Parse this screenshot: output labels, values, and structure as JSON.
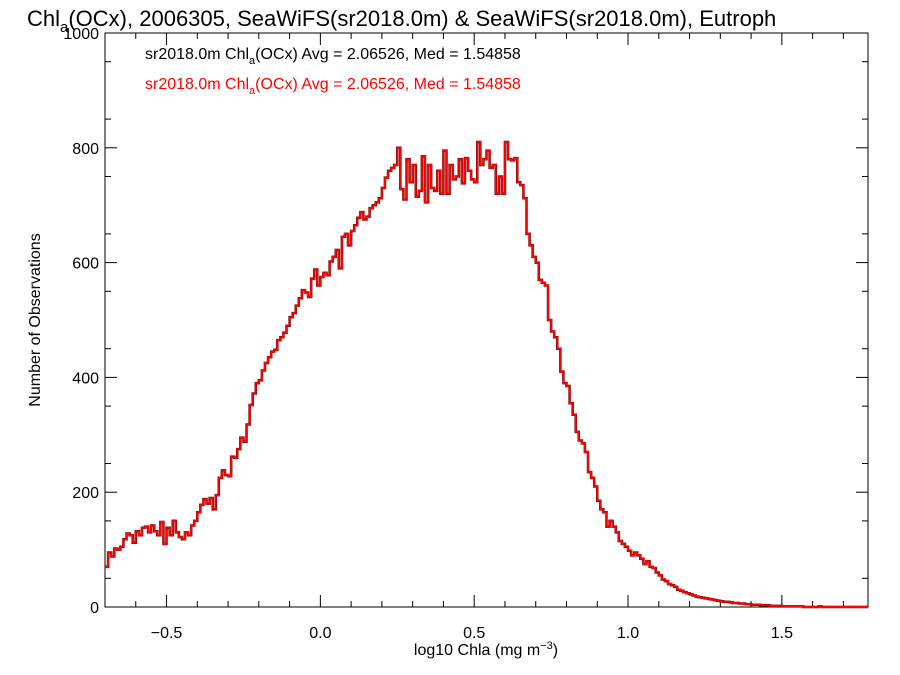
{
  "chart_data": {
    "type": "step",
    "title": {
      "prefix": "Chl",
      "sub": "a",
      "suffix": "(OCx), 2006305, SeaWiFS(sr2018.0m) & SeaWiFS(sr2018.0m), Eutroph"
    },
    "xlabel": {
      "prefix": "log10 Chla (mg m",
      "sup": "−3",
      "suffix": ")"
    },
    "ylabel": "Number of Observations",
    "xlim": [
      -0.7,
      1.78
    ],
    "ylim": [
      0,
      1000
    ],
    "x_ticks": [
      -0.5,
      0.0,
      0.5,
      1.0,
      1.5
    ],
    "x_tick_labels": [
      "−0.5",
      "0.0",
      "0.5",
      "1.0",
      "1.5"
    ],
    "y_ticks": [
      0,
      200,
      400,
      600,
      800,
      1000
    ],
    "y_tick_labels": [
      "0",
      "200",
      "400",
      "600",
      "800",
      "1000"
    ],
    "legend_position": "top-left",
    "legend": [
      {
        "prefix": "sr2018.0m Chl",
        "sub": "a",
        "suffix": "(OCx) Avg = 2.06526, Med = 1.54858",
        "color": "#000000"
      },
      {
        "prefix": "sr2018.0m Chl",
        "sub": "a",
        "suffix": "(OCx) Avg = 2.06526, Med = 1.54858",
        "color": "#ff0000"
      }
    ],
    "series": [
      {
        "color": "#000000"
      },
      {
        "color": "#ff0000"
      }
    ],
    "bin_width": 0.01,
    "bin_start": -0.7,
    "counts": [
      70,
      95,
      88,
      102,
      100,
      105,
      118,
      128,
      125,
      112,
      132,
      125,
      138,
      140,
      130,
      142,
      132,
      125,
      148,
      110,
      138,
      125,
      150,
      130,
      122,
      118,
      130,
      125,
      142,
      150,
      165,
      178,
      188,
      180,
      190,
      170,
      195,
      225,
      238,
      230,
      228,
      262,
      260,
      275,
      295,
      288,
      318,
      352,
      372,
      390,
      395,
      412,
      425,
      435,
      445,
      448,
      465,
      470,
      478,
      490,
      505,
      512,
      525,
      538,
      552,
      548,
      540,
      572,
      588,
      560,
      575,
      582,
      578,
      602,
      610,
      622,
      590,
      645,
      650,
      630,
      655,
      665,
      678,
      688,
      675,
      680,
      695,
      700,
      705,
      712,
      730,
      748,
      760,
      765,
      770,
      800,
      728,
      710,
      780,
      740,
      770,
      715,
      725,
      785,
      705,
      770,
      730,
      725,
      760,
      720,
      795,
      720,
      770,
      745,
      750,
      780,
      738,
      782,
      760,
      745,
      740,
      810,
      770,
      780,
      795,
      765,
      770,
      720,
      750,
      720,
      810,
      780,
      778,
      782,
      740,
      735,
      712,
      650,
      630,
      610,
      600,
      570,
      565,
      560,
      500,
      480,
      470,
      450,
      410,
      390,
      385,
      355,
      335,
      305,
      290,
      285,
      270,
      235,
      225,
      210,
      185,
      170,
      165,
      140,
      150,
      140,
      130,
      115,
      110,
      105,
      98,
      90,
      95,
      90,
      84,
      75,
      80,
      70,
      68,
      60,
      55,
      48,
      45,
      40,
      38,
      35,
      30,
      28,
      26,
      24,
      22,
      20,
      18,
      17,
      16,
      15,
      14,
      13,
      12,
      11,
      10,
      9,
      9,
      8,
      7,
      7,
      6,
      6,
      5,
      5,
      4,
      4,
      4,
      3,
      3,
      3,
      2,
      2,
      2,
      2,
      1,
      1,
      1,
      1,
      1,
      1,
      1,
      0,
      0,
      0,
      0,
      0,
      1,
      0,
      0,
      0,
      0,
      0,
      0,
      0,
      0,
      0,
      0,
      0,
      0,
      0,
      0,
      0,
      0,
      0,
      0,
      0,
      0,
      0,
      0,
      0,
      0,
      0,
      0,
      0,
      0,
      0,
      0,
      0
    ]
  }
}
